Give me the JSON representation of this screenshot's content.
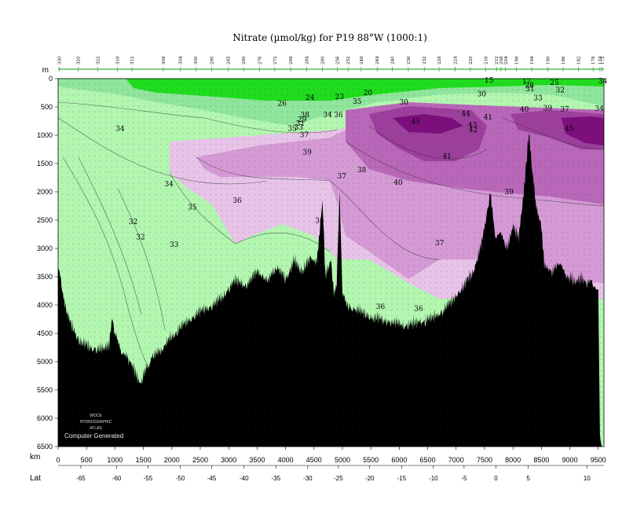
{
  "chart_data": {
    "type": "heatmap",
    "title": "Nitrate (µmol/kg) for P19 88°W (1000:1)",
    "y_axis": {
      "unit_label": "m",
      "range": [
        0,
        6500
      ],
      "inverted": true,
      "ticks": [
        0,
        500,
        1000,
        1500,
        2000,
        2500,
        3000,
        3500,
        4000,
        4500,
        5000,
        5500,
        6000,
        6500
      ]
    },
    "x_axis": {
      "unit_label": "km",
      "range": [
        0,
        9600
      ],
      "ticks": [
        0,
        500,
        1000,
        1500,
        2000,
        2500,
        3000,
        3500,
        4000,
        4500,
        5000,
        5500,
        6000,
        6500,
        7000,
        7500,
        8000,
        8500,
        9000,
        9500
      ]
    },
    "lat_axis": {
      "label": "Lat",
      "ticks": [
        {
          "lat": -65,
          "km": 400
        },
        {
          "lat": -60,
          "km": 1030
        },
        {
          "lat": -55,
          "km": 1580
        },
        {
          "lat": -50,
          "km": 2150
        },
        {
          "lat": -45,
          "km": 2700
        },
        {
          "lat": -40,
          "km": 3270
        },
        {
          "lat": -35,
          "km": 3830
        },
        {
          "lat": -30,
          "km": 4390
        },
        {
          "lat": -25,
          "km": 4930
        },
        {
          "lat": -20,
          "km": 5480
        },
        {
          "lat": -15,
          "km": 6040
        },
        {
          "lat": -10,
          "km": 6600
        },
        {
          "lat": -5,
          "km": 7140
        },
        {
          "lat": 0,
          "km": 7700
        },
        {
          "lat": 5,
          "km": 8270
        },
        {
          "lat": 10,
          "km": 9300
        }
      ]
    },
    "stations": [
      {
        "label": "330",
        "km": 20
      },
      {
        "label": "320",
        "km": 350
      },
      {
        "label": "322",
        "km": 700
      },
      {
        "label": "318",
        "km": 1040
      },
      {
        "label": "312",
        "km": 1300
      },
      {
        "label": "308",
        "km": 1850
      },
      {
        "label": "304",
        "km": 2150
      },
      {
        "label": "300",
        "km": 2420
      },
      {
        "label": "290",
        "km": 2700
      },
      {
        "label": "285",
        "km": 2990
      },
      {
        "label": "280",
        "km": 3260
      },
      {
        "label": "276",
        "km": 3540
      },
      {
        "label": "272",
        "km": 3810
      },
      {
        "label": "268",
        "km": 4090
      },
      {
        "label": "264",
        "km": 4370
      },
      {
        "label": "260",
        "km": 4650
      },
      {
        "label": "256",
        "km": 4910
      },
      {
        "label": "252",
        "km": 5100
      },
      {
        "label": "248",
        "km": 5330
      },
      {
        "label": "244",
        "km": 5610
      },
      {
        "label": "240",
        "km": 5880
      },
      {
        "label": "236",
        "km": 6160
      },
      {
        "label": "232",
        "km": 6440
      },
      {
        "label": "228",
        "km": 6700
      },
      {
        "label": "224",
        "km": 6980
      },
      {
        "label": "220",
        "km": 7250
      },
      {
        "label": "216",
        "km": 7520
      },
      {
        "label": "212",
        "km": 7710
      },
      {
        "label": "208",
        "km": 7790
      },
      {
        "label": "204",
        "km": 7870
      },
      {
        "label": "198",
        "km": 8060
      },
      {
        "label": "194",
        "km": 8330
      },
      {
        "label": "190",
        "km": 8610
      },
      {
        "label": "186",
        "km": 8880
      },
      {
        "label": "182",
        "km": 9150
      },
      {
        "label": "178",
        "km": 9410
      },
      {
        "label": "174",
        "km": 9530
      },
      {
        "label": "172",
        "km": 9570
      }
    ],
    "contour_labels": [
      {
        "v": "20",
        "km": 5450,
        "d": 250
      },
      {
        "v": "24",
        "km": 4430,
        "d": 330
      },
      {
        "v": "23",
        "km": 4950,
        "d": 320
      },
      {
        "v": "26",
        "km": 3940,
        "d": 440
      },
      {
        "v": "35",
        "km": 5260,
        "d": 400
      },
      {
        "v": "30",
        "km": 6080,
        "d": 420
      },
      {
        "v": "34",
        "km": 4740,
        "d": 640
      },
      {
        "v": "36",
        "km": 4930,
        "d": 640
      },
      {
        "v": "38",
        "km": 4340,
        "d": 640
      },
      {
        "v": "29",
        "km": 4290,
        "d": 720
      },
      {
        "v": "31",
        "km": 4260,
        "d": 790
      },
      {
        "v": "33",
        "km": 4230,
        "d": 860
      },
      {
        "v": "35",
        "km": 4120,
        "d": 880
      },
      {
        "v": "37",
        "km": 4330,
        "d": 990
      },
      {
        "v": "34",
        "km": 1090,
        "d": 880
      },
      {
        "v": "39",
        "km": 4380,
        "d": 1300
      },
      {
        "v": "38",
        "km": 5340,
        "d": 1610
      },
      {
        "v": "37",
        "km": 4990,
        "d": 1720
      },
      {
        "v": "36",
        "km": 3150,
        "d": 2150
      },
      {
        "v": "34",
        "km": 1950,
        "d": 1860
      },
      {
        "v": "35",
        "km": 2360,
        "d": 2270
      },
      {
        "v": "32",
        "km": 1320,
        "d": 2530
      },
      {
        "v": "32",
        "km": 1450,
        "d": 2800
      },
      {
        "v": "33",
        "km": 2040,
        "d": 2930
      },
      {
        "v": "36",
        "km": 4600,
        "d": 2510
      },
      {
        "v": "34",
        "km": 3500,
        "d": 3530
      },
      {
        "v": "44",
        "km": 7170,
        "d": 620
      },
      {
        "v": "45",
        "km": 6290,
        "d": 760
      },
      {
        "v": "43",
        "km": 7290,
        "d": 820
      },
      {
        "v": "42",
        "km": 7300,
        "d": 900
      },
      {
        "v": "41",
        "km": 7560,
        "d": 680
      },
      {
        "v": "41",
        "km": 6840,
        "d": 1370
      },
      {
        "v": "40",
        "km": 5980,
        "d": 1830
      },
      {
        "v": "39",
        "km": 7930,
        "d": 2000
      },
      {
        "v": "37",
        "km": 6710,
        "d": 2900
      },
      {
        "v": "36",
        "km": 5670,
        "d": 4030
      },
      {
        "v": "36",
        "km": 6340,
        "d": 4060
      },
      {
        "v": "15",
        "km": 7580,
        "d": 30
      },
      {
        "v": "17",
        "km": 8240,
        "d": 50
      },
      {
        "v": "25",
        "km": 8730,
        "d": 70
      },
      {
        "v": "30",
        "km": 7450,
        "d": 270
      },
      {
        "v": "33",
        "km": 8440,
        "d": 340
      },
      {
        "v": "32",
        "km": 8830,
        "d": 200
      },
      {
        "v": "28",
        "km": 8290,
        "d": 120
      },
      {
        "v": "31",
        "km": 8300,
        "d": 180
      },
      {
        "v": "40",
        "km": 8200,
        "d": 540
      },
      {
        "v": "39",
        "km": 8610,
        "d": 520
      },
      {
        "v": "37",
        "km": 8910,
        "d": 540
      },
      {
        "v": "45",
        "km": 8990,
        "d": 880
      },
      {
        "v": "34",
        "km": 9580,
        "d": 40
      },
      {
        "v": "34",
        "km": 9520,
        "d": 530
      }
    ],
    "colorscale": [
      {
        "value": 20,
        "color": "#1fdc1f"
      },
      {
        "value": 30,
        "color": "#8fe59b"
      },
      {
        "value": 34,
        "color": "#b2f6b0"
      },
      {
        "value": 36,
        "color": "#e8c3e8"
      },
      {
        "value": 38,
        "color": "#d59ad5"
      },
      {
        "value": 40,
        "color": "#b967b9"
      },
      {
        "value": 42,
        "color": "#9d3f9d"
      },
      {
        "value": 45,
        "color": "#7d0f7d"
      }
    ]
  },
  "watermark": {
    "lines": [
      "WOCE",
      "HYDROGRAPHIC",
      "ATLAS"
    ],
    "computer_generated": "Computer Generated"
  }
}
